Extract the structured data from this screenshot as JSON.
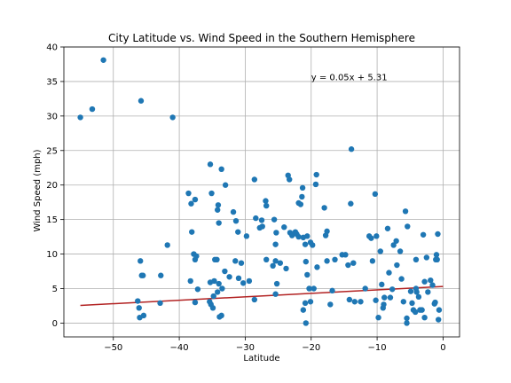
{
  "chart_data": {
    "type": "scatter",
    "title": "City Latitude vs. Wind Speed in the Southern Hemisphere",
    "xlabel": "Latitude",
    "ylabel": "Wind Speed (mph)",
    "xlim": [
      -57.5,
      2.5
    ],
    "ylim": [
      -2,
      40
    ],
    "xticks": [
      -50,
      -40,
      -30,
      -20,
      -10,
      0
    ],
    "yticks": [
      0,
      5,
      10,
      15,
      20,
      25,
      30,
      35,
      40
    ],
    "grid": true,
    "annotation": {
      "text": "y = 0.05x + 5.31",
      "x": -20,
      "y": 35.2
    },
    "regression": {
      "slope": 0.05,
      "intercept": 5.31,
      "x_start": -55,
      "x_end": 0,
      "color": "#b22222"
    },
    "marker_color": "#1f77b4",
    "points": [
      [
        -55.0,
        29.8
      ],
      [
        -53.2,
        31.0
      ],
      [
        -51.5,
        38.1
      ],
      [
        -45.8,
        32.2
      ],
      [
        -41.0,
        29.8
      ],
      [
        -46.3,
        3.2
      ],
      [
        -46.1,
        2.2
      ],
      [
        -46.0,
        0.8
      ],
      [
        -45.4,
        1.1
      ],
      [
        -45.9,
        9.0
      ],
      [
        -45.7,
        6.9
      ],
      [
        -45.5,
        6.9
      ],
      [
        -42.8,
        6.9
      ],
      [
        -42.9,
        2.9
      ],
      [
        -41.8,
        11.3
      ],
      [
        -38.6,
        18.8
      ],
      [
        -38.2,
        17.3
      ],
      [
        -37.6,
        17.9
      ],
      [
        -38.1,
        13.2
      ],
      [
        -37.8,
        10.0
      ],
      [
        -37.6,
        9.2
      ],
      [
        -37.4,
        9.7
      ],
      [
        -37.2,
        4.9
      ],
      [
        -37.6,
        3.0
      ],
      [
        -38.3,
        6.1
      ],
      [
        -35.3,
        23.0
      ],
      [
        -35.1,
        18.8
      ],
      [
        -33.6,
        22.3
      ],
      [
        -33.0,
        20.0
      ],
      [
        -34.1,
        17.1
      ],
      [
        -34.2,
        16.4
      ],
      [
        -34.0,
        14.5
      ],
      [
        -34.6,
        9.2
      ],
      [
        -34.3,
        9.2
      ],
      [
        -35.3,
        5.9
      ],
      [
        -34.7,
        6.1
      ],
      [
        -34.0,
        5.7
      ],
      [
        -33.5,
        5.0
      ],
      [
        -34.2,
        4.5
      ],
      [
        -34.8,
        3.9
      ],
      [
        -35.2,
        2.7
      ],
      [
        -34.9,
        2.2
      ],
      [
        -35.4,
        3.1
      ],
      [
        -33.6,
        1.1
      ],
      [
        -33.9,
        0.9
      ],
      [
        -33.1,
        7.5
      ],
      [
        -32.4,
        6.7
      ],
      [
        -31.8,
        16.1
      ],
      [
        -31.4,
        14.8
      ],
      [
        -31.1,
        13.2
      ],
      [
        -31.5,
        9.0
      ],
      [
        -30.6,
        8.7
      ],
      [
        -31.0,
        6.5
      ],
      [
        -30.3,
        5.8
      ],
      [
        -29.8,
        12.6
      ],
      [
        -29.4,
        6.1
      ],
      [
        -28.6,
        20.8
      ],
      [
        -28.4,
        15.2
      ],
      [
        -28.6,
        3.4
      ],
      [
        -27.8,
        13.8
      ],
      [
        -27.5,
        14.9
      ],
      [
        -26.9,
        17.7
      ],
      [
        -26.8,
        17.0
      ],
      [
        -27.4,
        14.0
      ],
      [
        -26.8,
        9.2
      ],
      [
        -25.6,
        15.0
      ],
      [
        -25.3,
        13.1
      ],
      [
        -25.4,
        11.4
      ],
      [
        -25.8,
        8.3
      ],
      [
        -25.4,
        9.0
      ],
      [
        -25.2,
        5.7
      ],
      [
        -25.4,
        4.2
      ],
      [
        -24.7,
        8.7
      ],
      [
        -24.1,
        13.9
      ],
      [
        -23.8,
        7.9
      ],
      [
        -23.5,
        21.4
      ],
      [
        -23.3,
        20.8
      ],
      [
        -23.2,
        13.1
      ],
      [
        -22.9,
        12.7
      ],
      [
        -22.4,
        13.2
      ],
      [
        -22.2,
        12.9
      ],
      [
        -21.9,
        12.5
      ],
      [
        -21.9,
        17.4
      ],
      [
        -21.6,
        17.2
      ],
      [
        -21.3,
        19.6
      ],
      [
        -21.4,
        18.3
      ],
      [
        -21.2,
        12.4
      ],
      [
        -20.9,
        11.4
      ],
      [
        -20.6,
        12.6
      ],
      [
        -20.1,
        11.7
      ],
      [
        -19.8,
        11.3
      ],
      [
        -19.2,
        21.5
      ],
      [
        -19.3,
        20.1
      ],
      [
        -20.8,
        8.9
      ],
      [
        -20.6,
        7.0
      ],
      [
        -20.9,
        2.9
      ],
      [
        -21.2,
        1.9
      ],
      [
        -20.8,
        0.0
      ],
      [
        -20.3,
        5.0
      ],
      [
        -20.1,
        3.1
      ],
      [
        -19.6,
        5.0
      ],
      [
        -19.1,
        8.1
      ],
      [
        -18.0,
        16.7
      ],
      [
        -17.6,
        13.3
      ],
      [
        -17.8,
        12.7
      ],
      [
        -17.6,
        9.0
      ],
      [
        -17.1,
        2.7
      ],
      [
        -16.8,
        4.7
      ],
      [
        -16.4,
        9.2
      ],
      [
        -15.3,
        9.9
      ],
      [
        -14.8,
        9.9
      ],
      [
        -14.4,
        8.4
      ],
      [
        -14.2,
        3.4
      ],
      [
        -14.0,
        17.3
      ],
      [
        -13.9,
        25.2
      ],
      [
        -13.6,
        8.7
      ],
      [
        -13.4,
        3.1
      ],
      [
        -12.5,
        3.1
      ],
      [
        -11.8,
        5.0
      ],
      [
        -11.2,
        12.6
      ],
      [
        -10.9,
        12.3
      ],
      [
        -10.7,
        9.0
      ],
      [
        -10.3,
        18.7
      ],
      [
        -10.1,
        12.6
      ],
      [
        -10.2,
        3.3
      ],
      [
        -9.8,
        0.8
      ],
      [
        -9.5,
        10.4
      ],
      [
        -9.3,
        5.6
      ],
      [
        -9.0,
        2.7
      ],
      [
        -9.1,
        2.2
      ],
      [
        -8.9,
        3.7
      ],
      [
        -8.4,
        13.7
      ],
      [
        -8.2,
        7.3
      ],
      [
        -8.0,
        3.7
      ],
      [
        -7.7,
        4.9
      ],
      [
        -7.5,
        11.3
      ],
      [
        -7.1,
        11.9
      ],
      [
        -7.0,
        8.4
      ],
      [
        -6.5,
        10.4
      ],
      [
        -6.3,
        6.4
      ],
      [
        -6.0,
        3.1
      ],
      [
        -5.7,
        16.2
      ],
      [
        -5.4,
        14.0
      ],
      [
        -5.5,
        0.7
      ],
      [
        -5.5,
        0.0
      ],
      [
        -4.9,
        4.6
      ],
      [
        -4.7,
        2.9
      ],
      [
        -4.5,
        1.9
      ],
      [
        -4.2,
        1.6
      ],
      [
        -4.1,
        9.2
      ],
      [
        -4.1,
        5.0
      ],
      [
        -4.0,
        4.5
      ],
      [
        -3.7,
        3.8
      ],
      [
        -3.5,
        1.9
      ],
      [
        -3.2,
        1.9
      ],
      [
        -3.0,
        12.8
      ],
      [
        -2.8,
        6.0
      ],
      [
        -2.8,
        0.8
      ],
      [
        -2.5,
        9.5
      ],
      [
        -2.3,
        4.5
      ],
      [
        -1.9,
        6.2
      ],
      [
        -1.6,
        5.5
      ],
      [
        -1.3,
        2.8
      ],
      [
        -1.1,
        9.2
      ],
      [
        -1.0,
        9.9
      ],
      [
        -0.9,
        9.2
      ],
      [
        -0.8,
        12.9
      ],
      [
        -0.7,
        0.5
      ],
      [
        -0.6,
        1.9
      ],
      [
        -1.2,
        3.0
      ]
    ]
  }
}
